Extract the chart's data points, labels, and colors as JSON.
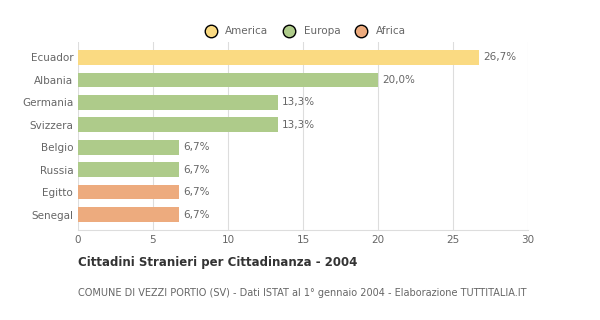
{
  "categories": [
    "Ecuador",
    "Albania",
    "Germania",
    "Svizzera",
    "Belgio",
    "Russia",
    "Egitto",
    "Senegal"
  ],
  "values": [
    26.7,
    20.0,
    13.3,
    13.3,
    6.7,
    6.7,
    6.7,
    6.7
  ],
  "colors": [
    "#FADA82",
    "#AECB8A",
    "#AECB8A",
    "#AECB8A",
    "#AECB8A",
    "#AECB8A",
    "#EDAB7E",
    "#EDAB7E"
  ],
  "labels": [
    "26,7%",
    "20,0%",
    "13,3%",
    "13,3%",
    "6,7%",
    "6,7%",
    "6,7%",
    "6,7%"
  ],
  "legend": [
    {
      "label": "America",
      "color": "#FADA82"
    },
    {
      "label": "Europa",
      "color": "#AECB8A"
    },
    {
      "label": "Africa",
      "color": "#EDAB7E"
    }
  ],
  "xlim": [
    0,
    30
  ],
  "xticks": [
    0,
    5,
    10,
    15,
    20,
    25,
    30
  ],
  "title_bold": "Cittadini Stranieri per Cittadinanza - 2004",
  "subtitle": "COMUNE DI VEZZI PORTIO (SV) - Dati ISTAT al 1° gennaio 2004 - Elaborazione TUTTITALIA.IT",
  "background_color": "#ffffff",
  "grid_color": "#dddddd",
  "bar_height": 0.65,
  "label_fontsize": 7.5,
  "tick_fontsize": 7.5,
  "title_fontsize": 8.5,
  "subtitle_fontsize": 7.0,
  "text_color": "#666666"
}
